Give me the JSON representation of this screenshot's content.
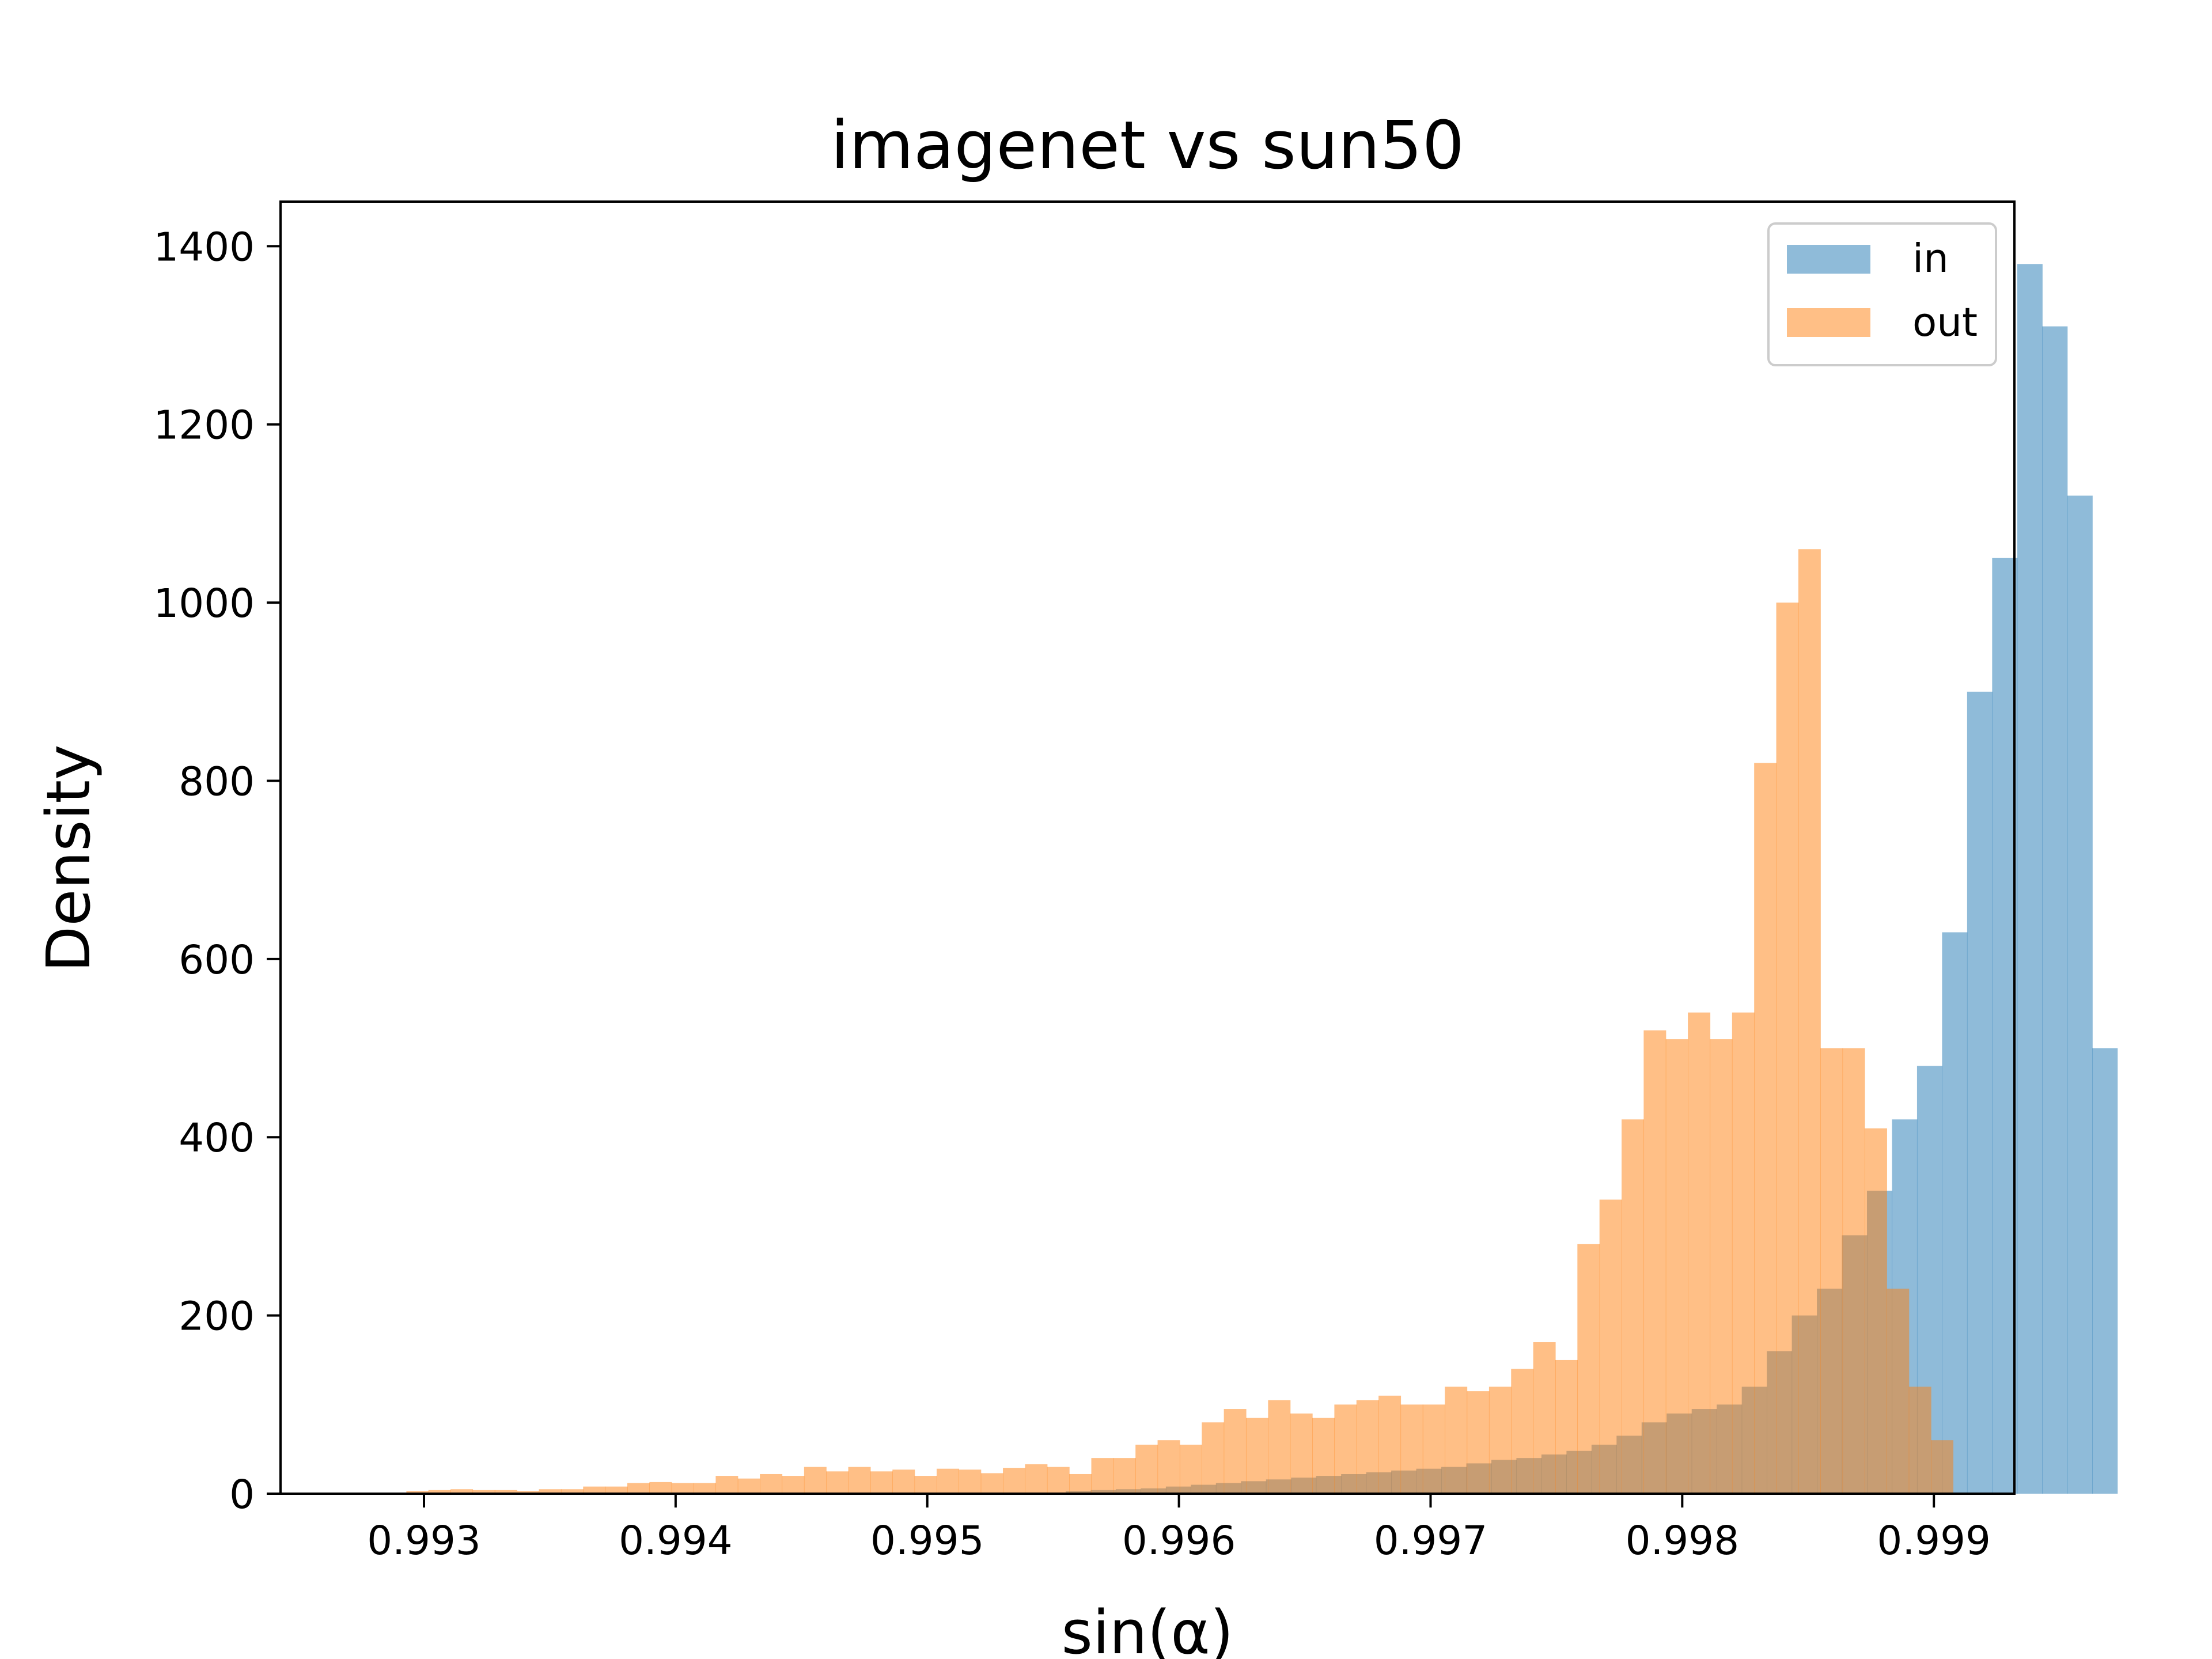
{
  "chart_data": {
    "type": "bar",
    "title": "imagenet vs sun50",
    "xlabel": "sin(α)",
    "ylabel": "Density",
    "xlim": [
      0.99243,
      0.99932
    ],
    "ylim": [
      0,
      1450
    ],
    "xticks": [
      "0.993",
      "0.994",
      "0.995",
      "0.996",
      "0.997",
      "0.998",
      "0.999"
    ],
    "yticks": [
      "0",
      "200",
      "400",
      "600",
      "800",
      "1000",
      "1200",
      "1400"
    ],
    "legend_position": "upper-right",
    "grid": false,
    "series": [
      {
        "name": "in",
        "color": "#1f77b4",
        "bin_start": 0.99555,
        "bin_width": 9.95e-05,
        "values": [
          3,
          4,
          5,
          6,
          8,
          10,
          12,
          14,
          16,
          18,
          20,
          22,
          24,
          26,
          28,
          30,
          34,
          38,
          40,
          44,
          48,
          55,
          65,
          80,
          90,
          95,
          100,
          120,
          160,
          200,
          230,
          290,
          340,
          420,
          480,
          630,
          900,
          1050,
          1380,
          1310,
          1120,
          500
        ]
      },
      {
        "name": "out",
        "color": "#ff7f0e",
        "bin_start": 0.99293,
        "bin_width": 8.78e-05,
        "values": [
          3,
          4,
          5,
          4,
          4,
          3,
          5,
          5,
          8,
          8,
          12,
          13,
          12,
          12,
          20,
          17,
          22,
          20,
          30,
          25,
          30,
          25,
          27,
          20,
          28,
          27,
          23,
          29,
          33,
          30,
          22,
          40,
          40,
          55,
          60,
          55,
          80,
          95,
          85,
          105,
          90,
          85,
          100,
          105,
          110,
          100,
          100,
          120,
          115,
          120,
          140,
          170,
          150,
          280,
          330,
          420,
          520,
          510,
          540,
          510,
          540,
          820,
          1000,
          1060,
          500,
          500,
          410,
          230,
          120,
          60
        ]
      }
    ]
  }
}
